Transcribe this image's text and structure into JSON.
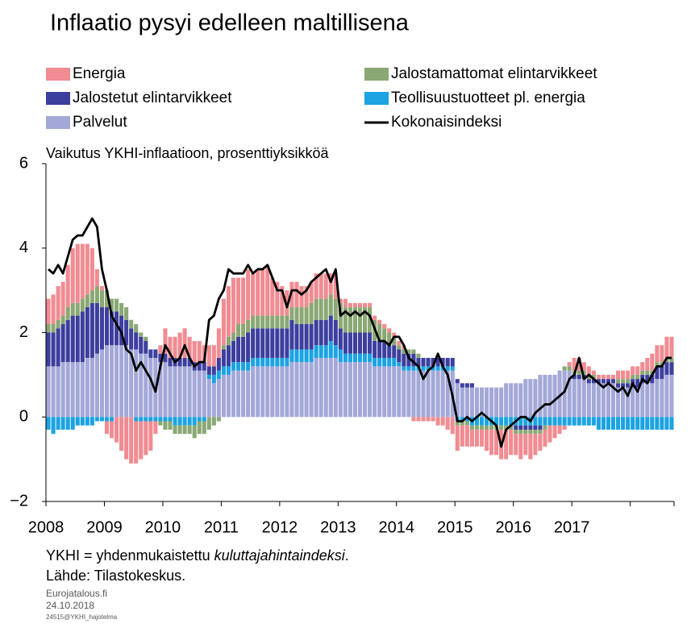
{
  "chart_data": {
    "type": "bar",
    "stacked": true,
    "title": "Inflaatio pysyi edelleen maltillisena",
    "y_axis_label": "Vaikutus YKHI-inflaatioon, prosenttiyksikköä",
    "categories": [
      "2008",
      null,
      null,
      null,
      null,
      null,
      null,
      null,
      null,
      null,
      null,
      null,
      "2009",
      null,
      null,
      null,
      null,
      null,
      null,
      null,
      null,
      null,
      null,
      null,
      "2010",
      null,
      null,
      null,
      null,
      null,
      null,
      null,
      null,
      null,
      null,
      null,
      "2011",
      null,
      null,
      null,
      null,
      null,
      null,
      null,
      null,
      null,
      null,
      null,
      "2012",
      null,
      null,
      null,
      null,
      null,
      null,
      null,
      null,
      null,
      null,
      null,
      "2013",
      null,
      null,
      null,
      null,
      null,
      null,
      null,
      null,
      null,
      null,
      null,
      "2014",
      null,
      null,
      null,
      null,
      null,
      null,
      null,
      null,
      null,
      null,
      null,
      "2015",
      null,
      null,
      null,
      null,
      null,
      null,
      null,
      null,
      null,
      null,
      null,
      "2016",
      null,
      null,
      null,
      null,
      null,
      null,
      null,
      null,
      null,
      null,
      null,
      "2017",
      null,
      null,
      null,
      null,
      null,
      null,
      null,
      null,
      null,
      null,
      null,
      null,
      null,
      null,
      null,
      null,
      null,
      null,
      null,
      null
    ],
    "ylim": [
      -2,
      6
    ],
    "yticks": [
      {
        "value": -2,
        "label": "−2"
      },
      0,
      2,
      4,
      6
    ],
    "series": [
      {
        "name": "Energia",
        "color": "#f08c92",
        "values": [
          0.6,
          0.7,
          0.8,
          0.8,
          1.0,
          1.3,
          1.4,
          1.3,
          1.2,
          1.0,
          0.4,
          0.1,
          -0.3,
          -0.4,
          -0.6,
          -0.8,
          -1.0,
          -1.1,
          -1.0,
          -0.9,
          -0.8,
          -0.7,
          -0.3,
          0.2,
          0.6,
          0.5,
          0.5,
          0.6,
          0.7,
          0.5,
          0.5,
          0.5,
          0.4,
          0.5,
          0.5,
          0.7,
          1.1,
          1.2,
          1.3,
          1.1,
          1.1,
          1.2,
          1.0,
          1.1,
          1.1,
          1.2,
          0.9,
          0.8,
          0.7,
          0.6,
          0.6,
          0.6,
          0.5,
          0.5,
          0.5,
          0.6,
          0.6,
          0.6,
          0.5,
          0.6,
          0.1,
          0.2,
          0.1,
          0.1,
          0.1,
          0.1,
          0.1,
          0.1,
          0.1,
          0.1,
          0.1,
          0.1,
          0.1,
          0.1,
          0,
          -0.1,
          -0.1,
          -0.1,
          -0.1,
          -0.1,
          -0.2,
          -0.2,
          -0.3,
          -0.4,
          -0.6,
          -0.5,
          -0.5,
          -0.4,
          -0.4,
          -0.4,
          -0.5,
          -0.6,
          -0.6,
          -0.7,
          -0.7,
          -0.6,
          -0.5,
          -0.6,
          -0.5,
          -0.6,
          -0.5,
          -0.4,
          -0.4,
          -0.4,
          -0.3,
          -0.2,
          -0.1,
          0.1,
          0.3,
          0.3,
          0.2,
          0.2,
          0.1,
          0.1,
          0.1,
          0.1,
          0.1,
          0.2,
          0.2,
          0.2,
          0.2,
          0.2,
          0.2,
          0.3,
          0.4,
          0.4,
          0.4,
          0.5,
          0.5
        ]
      },
      {
        "name": "Jalostamattomat elintarvikkeet",
        "color": "#8aa874",
        "values": [
          0.2,
          0.2,
          0.2,
          0.2,
          0.3,
          0.3,
          0.3,
          0.3,
          0.3,
          0.3,
          0.4,
          0.4,
          0.4,
          0.3,
          0.3,
          0.3,
          0.3,
          0.2,
          0.2,
          0.1,
          0.1,
          0,
          0,
          -0.1,
          -0.2,
          -0.2,
          -0.2,
          -0.2,
          -0.2,
          -0.2,
          -0.3,
          -0.3,
          -0.3,
          -0.3,
          -0.2,
          -0.1,
          0.1,
          0.2,
          0.2,
          0.3,
          0.3,
          0.3,
          0.3,
          0.3,
          0.3,
          0.3,
          0.3,
          0.3,
          0.3,
          0.3,
          0.3,
          0.4,
          0.4,
          0.4,
          0.5,
          0.5,
          0.5,
          0.5,
          0.5,
          0.5,
          0.6,
          0.6,
          0.6,
          0.6,
          0.6,
          0.6,
          0.6,
          0.5,
          0.4,
          0.3,
          0.3,
          0.2,
          0.1,
          0.1,
          0.1,
          0.1,
          0.1,
          0,
          0,
          0,
          0,
          0,
          0,
          0,
          -0.1,
          -0.1,
          -0.1,
          -0.1,
          -0.1,
          -0.1,
          -0.1,
          -0.1,
          -0.1,
          -0.1,
          -0.1,
          -0.1,
          -0.1,
          -0.1,
          -0.1,
          -0.1,
          -0.1,
          -0.1,
          -0.1,
          0,
          0,
          0,
          0.1,
          0.1,
          0.1,
          0.1,
          0.1,
          0.1,
          0.1,
          0,
          0,
          0,
          0,
          0.1,
          0.1,
          0.1,
          0.1,
          0.1,
          0.1,
          0.1,
          0.1,
          0.1,
          0.1,
          0.1,
          0.1
        ]
      },
      {
        "name": "Jalostetut elintarvikkeet",
        "color": "#3d3f9e",
        "values": [
          0.8,
          0.8,
          0.9,
          0.9,
          1.0,
          1.1,
          1.1,
          1.2,
          1.2,
          1.3,
          1.2,
          1.0,
          0.9,
          0.8,
          0.8,
          0.7,
          0.6,
          0.5,
          0.4,
          0.4,
          0.3,
          0.2,
          0.2,
          0.2,
          0.2,
          0.2,
          0.2,
          0.2,
          0.2,
          0.2,
          0.2,
          0.2,
          0.2,
          0.2,
          0.2,
          0.3,
          0.4,
          0.5,
          0.5,
          0.6,
          0.6,
          0.7,
          0.7,
          0.7,
          0.7,
          0.7,
          0.7,
          0.7,
          0.7,
          0.7,
          0.7,
          0.6,
          0.6,
          0.6,
          0.6,
          0.6,
          0.6,
          0.6,
          0.6,
          0.6,
          0.5,
          0.5,
          0.5,
          0.5,
          0.5,
          0.5,
          0.5,
          0.4,
          0.4,
          0.4,
          0.3,
          0.3,
          0.3,
          0.3,
          0.3,
          0.3,
          0.2,
          0.2,
          0.2,
          0.2,
          0.2,
          0.2,
          0.2,
          0.2,
          0.1,
          0.1,
          0.1,
          0.1,
          0,
          0,
          0,
          0,
          0,
          0,
          0,
          0,
          -0.1,
          -0.1,
          -0.1,
          -0.1,
          -0.1,
          -0.1,
          0,
          0,
          0,
          0,
          0,
          0,
          0.1,
          0.1,
          0.1,
          0.1,
          0.1,
          0.1,
          0.1,
          0.1,
          0.1,
          0.1,
          0.1,
          0.1,
          0.2,
          0.2,
          0.2,
          0.2,
          0.2,
          0.3,
          0.3,
          0.3,
          0.3
        ]
      },
      {
        "name": "Teollisuustuotteet pl. energia",
        "color": "#1ca3e2",
        "values": [
          -0.3,
          -0.4,
          -0.3,
          -0.3,
          -0.3,
          -0.3,
          -0.2,
          -0.2,
          -0.2,
          -0.2,
          -0.1,
          -0.1,
          -0.1,
          -0.1,
          0,
          0,
          0,
          0,
          -0.1,
          -0.1,
          -0.1,
          -0.1,
          -0.1,
          -0.1,
          -0.1,
          -0.1,
          -0.2,
          -0.2,
          -0.2,
          -0.2,
          -0.2,
          -0.1,
          -0.1,
          0.1,
          0.2,
          0.2,
          0.2,
          0.2,
          0.2,
          0.2,
          0.2,
          0.2,
          0.2,
          0.2,
          0.2,
          0.2,
          0.2,
          0.2,
          0.2,
          0.2,
          0.3,
          0.3,
          0.3,
          0.3,
          0.3,
          0.3,
          0.3,
          0.3,
          0.4,
          0.3,
          0.3,
          0.2,
          0.2,
          0.2,
          0.2,
          0.2,
          0.2,
          0.2,
          0.2,
          0.2,
          0.2,
          0.2,
          0.1,
          0.1,
          0.1,
          0.1,
          0.1,
          0.1,
          0.1,
          0.1,
          0.1,
          0.1,
          0.1,
          0.1,
          -0.1,
          -0.1,
          -0.1,
          -0.2,
          -0.2,
          -0.2,
          -0.2,
          -0.2,
          -0.2,
          -0.2,
          -0.2,
          -0.2,
          -0.2,
          -0.2,
          -0.2,
          -0.2,
          -0.2,
          -0.2,
          -0.2,
          -0.2,
          -0.2,
          -0.2,
          -0.2,
          -0.2,
          -0.2,
          -0.2,
          -0.2,
          -0.2,
          -0.2,
          -0.3,
          -0.3,
          -0.3,
          -0.3,
          -0.3,
          -0.3,
          -0.3,
          -0.3,
          -0.3,
          -0.3,
          -0.3,
          -0.3,
          -0.3,
          -0.3,
          -0.3,
          -0.3
        ]
      },
      {
        "name": "Palvelut",
        "color": "#a4a8d8",
        "values": [
          1.2,
          1.2,
          1.2,
          1.3,
          1.3,
          1.3,
          1.3,
          1.3,
          1.4,
          1.4,
          1.5,
          1.6,
          1.7,
          1.7,
          1.7,
          1.7,
          1.7,
          1.6,
          1.6,
          1.5,
          1.5,
          1.4,
          1.4,
          1.3,
          1.3,
          1.2,
          1.2,
          1.2,
          1.2,
          1.2,
          1.1,
          1.1,
          1.1,
          0.9,
          0.8,
          0.9,
          1.0,
          1.0,
          1.1,
          1.1,
          1.1,
          1.1,
          1.2,
          1.2,
          1.2,
          1.2,
          1.2,
          1.2,
          1.2,
          1.2,
          1.3,
          1.3,
          1.3,
          1.3,
          1.3,
          1.4,
          1.4,
          1.4,
          1.4,
          1.4,
          1.3,
          1.3,
          1.3,
          1.3,
          1.3,
          1.3,
          1.3,
          1.2,
          1.2,
          1.2,
          1.2,
          1.2,
          1.2,
          1.1,
          1.1,
          1.1,
          1.1,
          1.1,
          1.1,
          1.1,
          1.1,
          1.1,
          1.1,
          1.1,
          0.8,
          0.7,
          0.7,
          0.7,
          0.7,
          0.7,
          0.7,
          0.7,
          0.7,
          0.7,
          0.8,
          0.8,
          0.8,
          0.8,
          0.9,
          0.9,
          0.9,
          1.0,
          1.0,
          1.0,
          1.0,
          1.1,
          1.1,
          1.1,
          0.9,
          0.9,
          0.9,
          0.8,
          0.8,
          0.8,
          0.8,
          0.8,
          0.8,
          0.7,
          0.7,
          0.7,
          0.7,
          0.7,
          0.8,
          0.8,
          0.8,
          0.9,
          0.9,
          1.0,
          1.0
        ]
      },
      {
        "name": "Kokonaisindeksi",
        "type": "line",
        "color": "#000000",
        "values": [
          3.5,
          3.4,
          3.6,
          3.4,
          3.8,
          4.2,
          4.3,
          4.3,
          4.5,
          4.7,
          4.5,
          3.5,
          3.0,
          2.4,
          2.2,
          2.0,
          1.6,
          1.5,
          1.1,
          1.3,
          1.1,
          0.9,
          0.6,
          1.2,
          1.7,
          1.5,
          1.3,
          1.4,
          1.7,
          1.4,
          1.2,
          1.3,
          1.3,
          2.3,
          2.4,
          2.8,
          3.0,
          3.5,
          3.4,
          3.4,
          3.4,
          3.6,
          3.4,
          3.5,
          3.5,
          3.6,
          3.3,
          3.0,
          3.0,
          2.6,
          3.0,
          3.0,
          2.9,
          3.0,
          3.2,
          3.3,
          3.4,
          3.5,
          3.2,
          3.5,
          2.4,
          2.5,
          2.4,
          2.5,
          2.4,
          2.5,
          2.4,
          2.1,
          1.8,
          1.8,
          1.7,
          1.9,
          1.9,
          1.7,
          1.4,
          1.3,
          1.2,
          0.9,
          1.1,
          1.2,
          1.5,
          1.2,
          1.0,
          0.5,
          -0.1,
          -0.1,
          0,
          -0.1,
          0,
          0.1,
          0,
          -0.1,
          -0.2,
          -0.7,
          -0.3,
          -0.2,
          -0.1,
          0,
          0,
          -0.1,
          0.1,
          0.2,
          0.3,
          0.3,
          0.4,
          0.5,
          0.6,
          0.9,
          1.0,
          1.4,
          0.9,
          1.0,
          0.9,
          0.8,
          0.7,
          0.8,
          0.7,
          0.6,
          0.7,
          0.5,
          0.8,
          0.6,
          0.9,
          0.8,
          1.0,
          1.2,
          1.2,
          1.4,
          1.4
        ]
      }
    ],
    "notes": {
      "line1": "YKHI = yhdenmukaistettu ",
      "line1_italic": "kuluttajahintaindeksi",
      "line1_end": ".",
      "source": "Lähde: Tilastokeskus."
    },
    "footer": {
      "site": "Eurojatalous.fi",
      "date": "24.10.2018",
      "code": "24515@YKHI_hajotelma"
    }
  }
}
